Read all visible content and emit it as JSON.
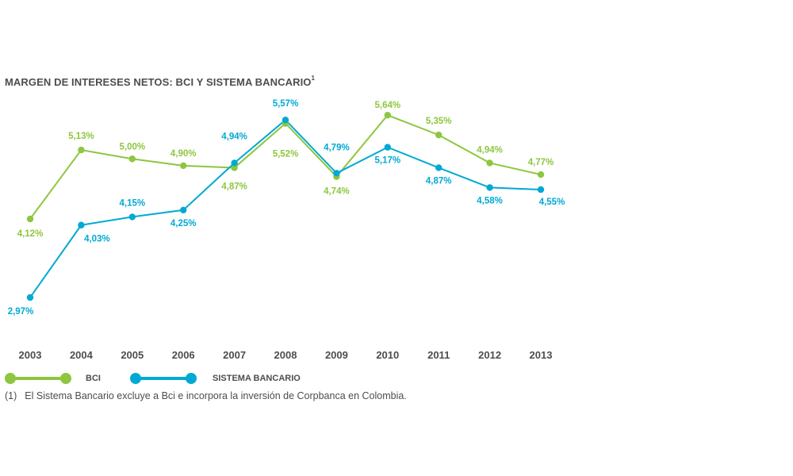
{
  "chart_data": {
    "type": "line",
    "title": "MARGEN DE INTERESES NETOS: BCI Y SISTEMA BANCARIO",
    "title_superscript": "1",
    "categories": [
      "2003",
      "2004",
      "2005",
      "2006",
      "2007",
      "2008",
      "2009",
      "2010",
      "2011",
      "2012",
      "2013"
    ],
    "series": [
      {
        "name": "BCI",
        "color": "#8dc63f",
        "values": [
          4.12,
          5.13,
          5.0,
          4.9,
          4.87,
          5.52,
          4.74,
          5.64,
          5.35,
          4.94,
          4.77
        ],
        "labels": [
          "4,12%",
          "5,13%",
          "5,00%",
          "4,90%",
          "4,87%",
          "5,52%",
          "4,74%",
          "5,64%",
          "5,35%",
          "4,94%",
          "4,77%"
        ]
      },
      {
        "name": "SISTEMA BANCARIO",
        "color": "#00a9d4",
        "values": [
          2.97,
          4.03,
          4.15,
          4.25,
          4.94,
          5.57,
          4.79,
          5.17,
          4.87,
          4.58,
          4.55
        ],
        "labels": [
          "2,97%",
          "4,03%",
          "4,15%",
          "4,25%",
          "4,94%",
          "5,57%",
          "4,79%",
          "5,17%",
          "4,87%",
          "4,58%",
          "4,55%"
        ]
      }
    ],
    "ylim": [
      2.9,
      5.7
    ],
    "grid": false,
    "legend_position": "bottom-left"
  },
  "legend": {
    "bci_label": "BCI",
    "sistema_label": "SISTEMA BANCARIO"
  },
  "footnote": {
    "number": "(1)",
    "text": "El Sistema Bancario excluye a Bci e incorpora la inversión de Corpbanca en Colombia."
  }
}
